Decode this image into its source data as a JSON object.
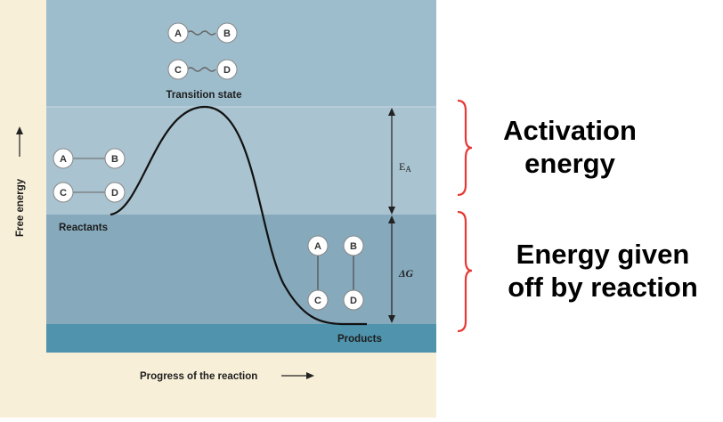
{
  "diagram": {
    "transition_state_label": "Transition state",
    "reactants_label": "Reactants",
    "products_label": "Products",
    "y_axis_label": "Free energy",
    "x_axis_label": "Progress of the reaction",
    "ea_label": "E",
    "ea_subscript": "A",
    "dg_label": "ΔG",
    "molecules": {
      "a": "A",
      "b": "B",
      "c": "C",
      "d": "D"
    },
    "colors": {
      "beige": "#f7efd8",
      "top_band": "#9ebdcc",
      "activation_band": "#a9c3d0",
      "delta_g_band": "#86a9bc",
      "products_band": "#4f93ad",
      "bracket": "#e53935"
    }
  },
  "annotations": {
    "activation_line1": "Activation",
    "activation_line2": "energy",
    "given_off_line1": "Energy given",
    "given_off_line2": "off by reaction"
  }
}
